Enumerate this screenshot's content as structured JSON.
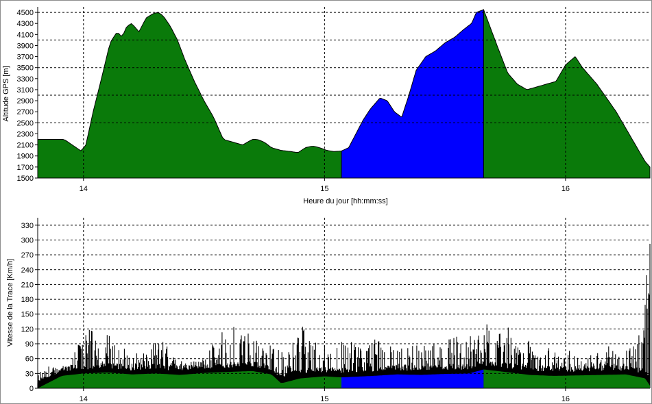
{
  "colors": {
    "terrain": "#0a7a0a",
    "selection": "#0000ff",
    "outline": "#000000",
    "grid": "#000000",
    "frame": "#8c8c8c",
    "background": "#ffffff"
  },
  "chart_data": [
    {
      "type": "area",
      "ylabel": "Altitude GPS [m]",
      "xlabel": "Heure du jour [hh:mm:ss]",
      "xlim": [
        13.81,
        16.35
      ],
      "ylim": [
        1500,
        4600
      ],
      "x_ticks": [
        14,
        15,
        16
      ],
      "y_ticks": [
        1500,
        1700,
        1900,
        2100,
        2300,
        2500,
        2700,
        2900,
        3100,
        3300,
        3500,
        3700,
        3900,
        4100,
        4300,
        4500
      ],
      "grid_y": [
        2500,
        3000,
        3500,
        4000,
        4500
      ],
      "grid": true,
      "highlight_range": [
        15.07,
        15.66
      ],
      "series": [
        {
          "x": [
            13.81,
            13.92,
            13.97,
            13.99,
            14.01,
            14.04,
            14.08,
            14.11,
            14.14,
            14.16,
            14.18,
            14.2,
            14.23,
            14.26,
            14.29,
            14.31,
            14.33,
            14.36,
            14.39,
            14.42,
            14.46,
            14.5,
            14.54,
            14.58,
            14.62,
            14.66,
            14.7,
            14.72,
            14.75,
            14.78,
            14.82,
            14.86,
            14.89,
            14.92,
            14.95,
            14.98,
            15.01,
            15.04,
            15.07,
            15.1,
            15.13,
            15.16,
            15.19,
            15.23,
            15.26,
            15.29,
            15.32,
            15.35,
            15.38,
            15.42,
            15.46,
            15.5,
            15.54,
            15.58,
            15.61,
            15.63,
            15.66,
            15.69,
            15.72,
            15.76,
            15.8,
            15.84,
            15.88,
            15.92,
            15.96,
            16.0,
            16.04,
            16.07,
            16.1,
            16.13,
            16.17,
            16.21,
            16.25,
            16.29,
            16.33,
            16.35
          ],
          "y": [
            2200,
            2200,
            2050,
            1990,
            2100,
            2700,
            3400,
            3950,
            4150,
            4050,
            4250,
            4300,
            4150,
            4400,
            4480,
            4500,
            4440,
            4250,
            4000,
            3650,
            3250,
            2900,
            2600,
            2200,
            2150,
            2100,
            2200,
            2200,
            2150,
            2050,
            2000,
            1980,
            1960,
            2050,
            2080,
            2050,
            2000,
            1980,
            1990,
            2050,
            2300,
            2550,
            2750,
            2950,
            2900,
            2700,
            2600,
            3000,
            3450,
            3700,
            3800,
            3950,
            4050,
            4200,
            4300,
            4500,
            4550,
            4200,
            3850,
            3400,
            3200,
            3100,
            3150,
            3200,
            3250,
            3550,
            3700,
            3500,
            3350,
            3200,
            2950,
            2700,
            2400,
            2100,
            1800,
            1700
          ]
        }
      ]
    },
    {
      "type": "area",
      "ylabel": "Vitesse de la Trace [Km/h]",
      "xlabel": "",
      "xlim": [
        13.81,
        16.35
      ],
      "ylim": [
        0,
        345
      ],
      "x_ticks": [
        14,
        15,
        16
      ],
      "y_ticks": [
        0,
        30,
        60,
        90,
        120,
        150,
        180,
        210,
        240,
        270,
        300,
        330
      ],
      "grid": true,
      "highlight_range": [
        15.07,
        15.66
      ],
      "baseline": {
        "x": [
          13.81,
          13.91,
          14.0,
          14.1,
          14.2,
          14.3,
          14.4,
          14.5,
          14.6,
          14.7,
          14.78,
          14.82,
          14.9,
          15.0,
          15.07,
          15.2,
          15.3,
          15.4,
          15.5,
          15.6,
          15.66,
          15.75,
          15.85,
          15.95,
          16.05,
          16.15,
          16.25,
          16.33,
          16.35
        ],
        "y": [
          0,
          25,
          30,
          32,
          28,
          30,
          27,
          31,
          33,
          35,
          28,
          10,
          20,
          24,
          22,
          25,
          28,
          27,
          29,
          30,
          38,
          33,
          27,
          25,
          26,
          27,
          28,
          20,
          5
        ]
      },
      "peaks": {
        "x": [
          13.91,
          13.94,
          14.0,
          14.03,
          14.08,
          14.11,
          14.15,
          14.2,
          14.26,
          14.32,
          14.38,
          14.44,
          14.5,
          14.56,
          14.58,
          14.62,
          14.66,
          14.7,
          14.73,
          14.77,
          14.86,
          14.89,
          14.93,
          14.98,
          15.03,
          15.08,
          15.13,
          15.18,
          15.22,
          15.28,
          15.33,
          15.38,
          15.43,
          15.5,
          15.55,
          15.6,
          15.64,
          15.68,
          15.72,
          15.76,
          15.82,
          15.86,
          15.91,
          15.97,
          16.02,
          16.07,
          16.12,
          16.18,
          16.24,
          16.26,
          16.3,
          16.33,
          16.34
        ],
        "y": [
          45,
          60,
          110,
          125,
          90,
          120,
          100,
          80,
          70,
          110,
          60,
          55,
          60,
          110,
          120,
          125,
          115,
          120,
          100,
          90,
          80,
          140,
          110,
          95,
          100,
          95,
          100,
          90,
          105,
          95,
          80,
          90,
          85,
          100,
          110,
          105,
          110,
          135,
          130,
          125,
          70,
          110,
          80,
          85,
          75,
          60,
          70,
          85,
          65,
          90,
          100,
          190,
          345
        ]
      }
    }
  ]
}
